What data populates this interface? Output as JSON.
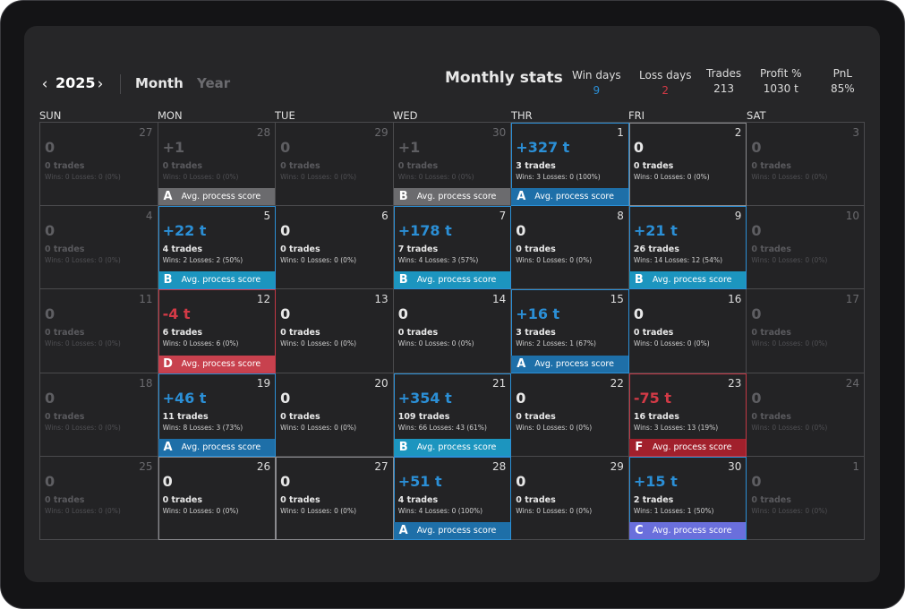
{
  "header": {
    "prev_icon": "‹",
    "year": "2025",
    "next_icon": "›",
    "tabs": {
      "month": "Month",
      "year": "Year"
    },
    "stats_title": "Monthly stats",
    "stats": {
      "win_days": {
        "label": "Win days",
        "value": "9"
      },
      "loss_days": {
        "label": "Loss days",
        "value": "2"
      },
      "trades": {
        "label": "Trades",
        "value": "213"
      },
      "profit": {
        "label": "Profit %",
        "value": "1030 t"
      },
      "pnl": {
        "label": "PnL",
        "value": "85%"
      }
    }
  },
  "weekdays": [
    "SUN",
    "MON",
    "TUE",
    "WED",
    "THR",
    "FRI",
    "SAT"
  ],
  "score_label": "Avg. process score",
  "colors": {
    "positive": "#2b8fd6",
    "negative": "#d33a46",
    "grade_A": "#1e6fa8",
    "grade_B": "#1c95bf",
    "grade_C": "#6a6fdc",
    "grade_D": "#c8414e",
    "grade_F": "#a1202c"
  },
  "days": [
    {
      "day": "27",
      "pnl": "0",
      "trades": "0 trades",
      "wl": "Wins: 0 Losses: 0 (0%)",
      "muted": true
    },
    {
      "day": "28",
      "pnl": "+1",
      "trades": "0 trades",
      "wl": "Wins: 0 Losses: 0 (0%)",
      "muted": true,
      "grade": "A",
      "gradeStyle": "gray"
    },
    {
      "day": "29",
      "pnl": "0",
      "trades": "0 trades",
      "wl": "Wins: 0 Losses: 0 (0%)",
      "muted": true
    },
    {
      "day": "30",
      "pnl": "+1",
      "trades": "0 trades",
      "wl": "Wins: 0 Losses: 0 (0%)",
      "muted": true,
      "grade": "B",
      "gradeStyle": "gray"
    },
    {
      "day": "1",
      "pnl": "+327 t",
      "trades": "3 trades",
      "wl": "Wins: 3 Losses: 0 (100%)",
      "tone": "pos",
      "grade": "A"
    },
    {
      "day": "2",
      "pnl": "0",
      "trades": "0 trades",
      "wl": "Wins: 0 Losses: 0 (0%)",
      "tone": "zero-cur"
    },
    {
      "day": "3",
      "pnl": "0",
      "trades": "0 trades",
      "wl": "Wins: 0 Losses: 0 (0%)",
      "muted": true
    },
    {
      "day": "4",
      "pnl": "0",
      "trades": "0 trades",
      "wl": "Wins: 0 Losses: 0 (0%)",
      "muted": true
    },
    {
      "day": "5",
      "pnl": "+22 t",
      "trades": "4 trades",
      "wl": "Wins: 2 Losses: 2 (50%)",
      "tone": "pos",
      "grade": "B"
    },
    {
      "day": "6",
      "pnl": "0",
      "trades": "0 trades",
      "wl": "Wins: 0 Losses: 0 (0%)"
    },
    {
      "day": "7",
      "pnl": "+178 t",
      "trades": "7 trades",
      "wl": "Wins: 4 Losses: 3 (57%)",
      "tone": "pos",
      "grade": "B"
    },
    {
      "day": "8",
      "pnl": "0",
      "trades": "0 trades",
      "wl": "Wins: 0 Losses: 0 (0%)"
    },
    {
      "day": "9",
      "pnl": "+21 t",
      "trades": "26 trades",
      "wl": "Wins: 14 Losses: 12 (54%)",
      "tone": "pos",
      "grade": "B"
    },
    {
      "day": "10",
      "pnl": "0",
      "trades": "0 trades",
      "wl": "Wins: 0 Losses: 0 (0%)",
      "muted": true
    },
    {
      "day": "11",
      "pnl": "0",
      "trades": "0 trades",
      "wl": "Wins: 0 Losses: 0 (0%)",
      "muted": true
    },
    {
      "day": "12",
      "pnl": "-4 t",
      "trades": "6 trades",
      "wl": "Wins: 0 Losses: 6 (0%)",
      "tone": "neg",
      "grade": "D"
    },
    {
      "day": "13",
      "pnl": "0",
      "trades": "0 trades",
      "wl": "Wins: 0 Losses: 0 (0%)"
    },
    {
      "day": "14",
      "pnl": "0",
      "trades": "0 trades",
      "wl": "Wins: 0 Losses: 0 (0%)"
    },
    {
      "day": "15",
      "pnl": "+16 t",
      "trades": "3 trades",
      "wl": "Wins: 2 Losses: 1 (67%)",
      "tone": "pos",
      "grade": "A"
    },
    {
      "day": "16",
      "pnl": "0",
      "trades": "0 trades",
      "wl": "Wins: 0 Losses: 0 (0%)"
    },
    {
      "day": "17",
      "pnl": "0",
      "trades": "0 trades",
      "wl": "Wins: 0 Losses: 0 (0%)",
      "muted": true
    },
    {
      "day": "18",
      "pnl": "0",
      "trades": "0 trades",
      "wl": "Wins: 0 Losses: 0 (0%)",
      "muted": true
    },
    {
      "day": "19",
      "pnl": "+46 t",
      "trades": "11 trades",
      "wl": "Wins: 8 Losses: 3 (73%)",
      "tone": "pos",
      "grade": "A"
    },
    {
      "day": "20",
      "pnl": "0",
      "trades": "0 trades",
      "wl": "Wins: 0 Losses: 0 (0%)"
    },
    {
      "day": "21",
      "pnl": "+354 t",
      "trades": "109 trades",
      "wl": "Wins: 66 Losses: 43 (61%)",
      "tone": "pos",
      "grade": "B"
    },
    {
      "day": "22",
      "pnl": "0",
      "trades": "0 trades",
      "wl": "Wins: 0 Losses: 0 (0%)"
    },
    {
      "day": "23",
      "pnl": "-75 t",
      "trades": "16 trades",
      "wl": "Wins: 3 Losses: 13 (19%)",
      "tone": "neg",
      "grade": "F"
    },
    {
      "day": "24",
      "pnl": "0",
      "trades": "0 trades",
      "wl": "Wins: 0 Losses: 0 (0%)",
      "muted": true
    },
    {
      "day": "25",
      "pnl": "0",
      "trades": "0 trades",
      "wl": "Wins: 0 Losses: 0 (0%)",
      "muted": true
    },
    {
      "day": "26",
      "pnl": "0",
      "trades": "0 trades",
      "wl": "Wins: 0 Losses: 0 (0%)",
      "tone": "zero-cur"
    },
    {
      "day": "27",
      "pnl": "0",
      "trades": "0 trades",
      "wl": "Wins: 0 Losses: 0 (0%)",
      "tone": "zero-cur"
    },
    {
      "day": "28",
      "pnl": "+51 t",
      "trades": "4 trades",
      "wl": "Wins: 4 Losses: 0 (100%)",
      "tone": "pos",
      "grade": "A"
    },
    {
      "day": "29",
      "pnl": "0",
      "trades": "0 trades",
      "wl": "Wins: 0 Losses: 0 (0%)"
    },
    {
      "day": "30",
      "pnl": "+15 t",
      "trades": "2 trades",
      "wl": "Wins: 1 Losses: 1 (50%)",
      "tone": "pos",
      "grade": "C"
    },
    {
      "day": "1",
      "pnl": "0",
      "trades": "0 trades",
      "wl": "Wins: 0 Losses: 0 (0%)",
      "muted": true
    }
  ]
}
